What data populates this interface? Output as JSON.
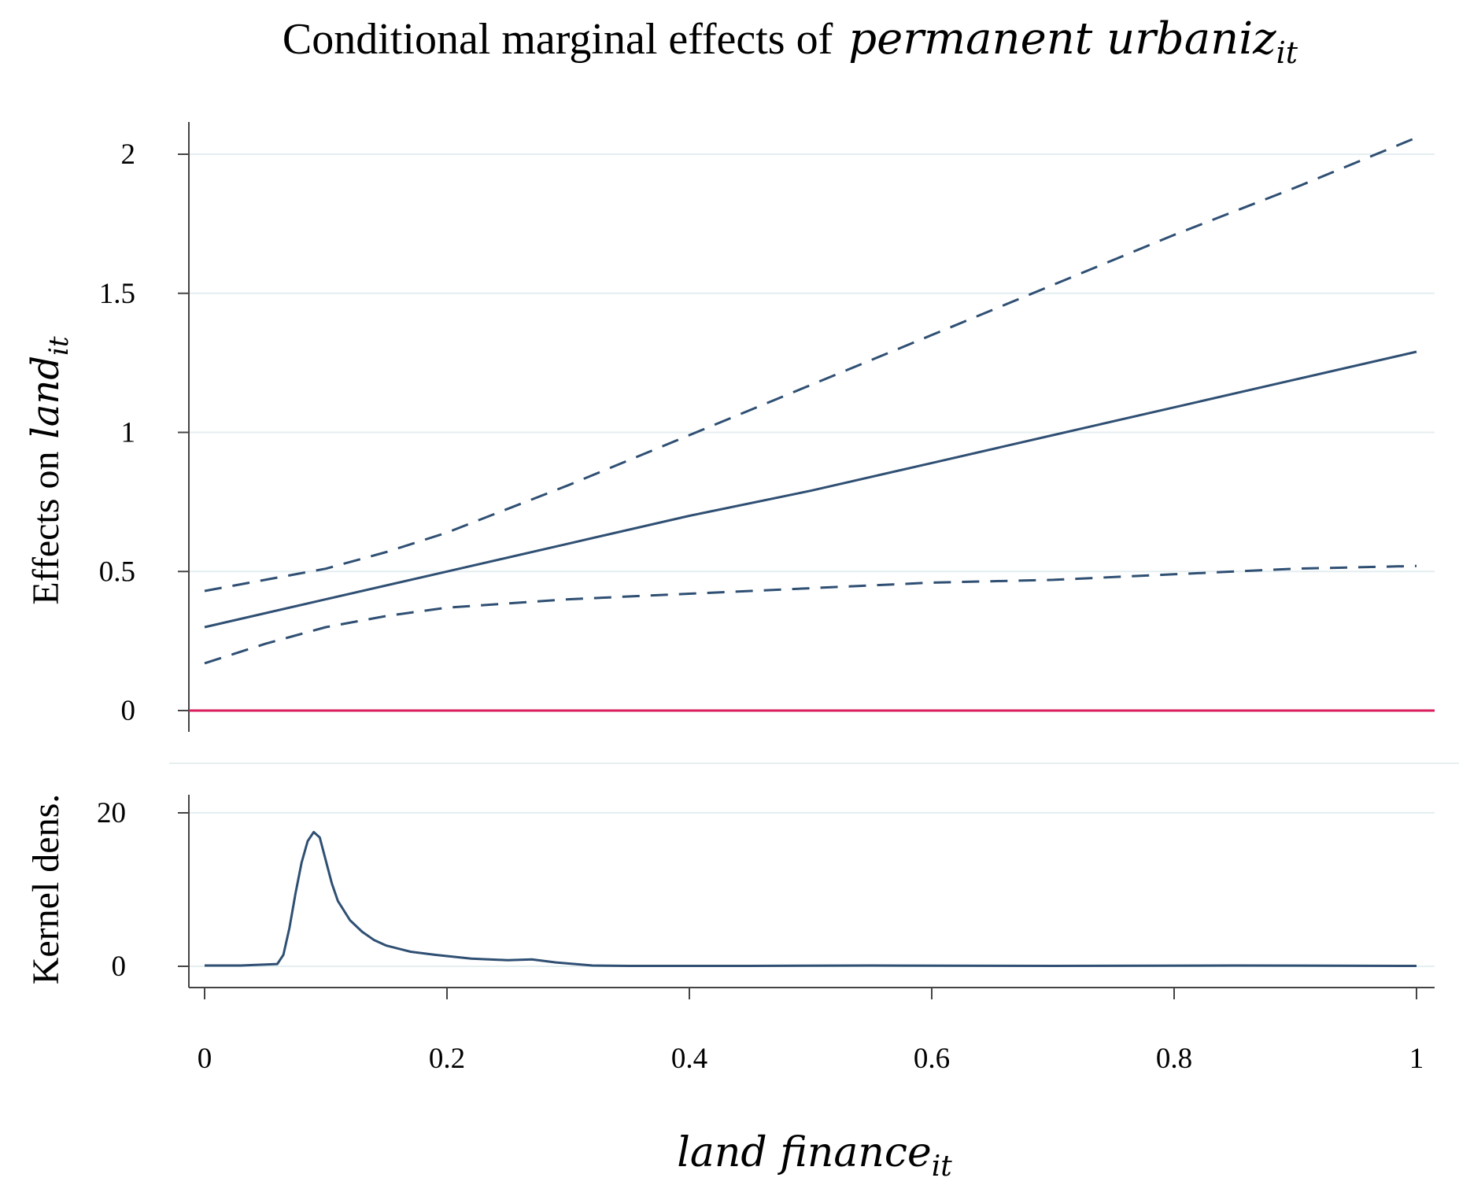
{
  "chart_data": [
    {
      "type": "line",
      "title": {
        "text": "Conditional marginal effects of",
        "math": "permanent urbaniz",
        "subscript": "it"
      },
      "ylabel": {
        "text": "Effects on",
        "math": "land",
        "subscript": "it"
      },
      "xlim": [
        0,
        1
      ],
      "ylim": [
        0,
        2
      ],
      "y_ticks": [
        "0",
        "0.5",
        "1",
        "1.5",
        "2"
      ],
      "grid": true,
      "series": [
        {
          "style": "solid",
          "color": "#2f4f73",
          "x": [
            0,
            0.1,
            0.2,
            0.3,
            0.4,
            0.5,
            0.6,
            0.7,
            0.8,
            0.9,
            1.0
          ],
          "y": [
            0.3,
            0.4,
            0.5,
            0.6,
            0.7,
            0.79,
            0.89,
            0.99,
            1.09,
            1.19,
            1.29
          ]
        },
        {
          "style": "dashed",
          "color": "#2f4f73",
          "x": [
            0,
            0.1,
            0.15,
            0.2,
            0.3,
            0.4,
            0.5,
            0.6,
            0.7,
            0.8,
            0.9,
            1.0
          ],
          "y": [
            0.43,
            0.51,
            0.57,
            0.64,
            0.81,
            0.99,
            1.17,
            1.35,
            1.53,
            1.71,
            1.88,
            2.06
          ]
        },
        {
          "style": "dashed",
          "color": "#2f4f73",
          "x": [
            0,
            0.05,
            0.1,
            0.15,
            0.2,
            0.3,
            0.4,
            0.5,
            0.6,
            0.7,
            0.8,
            0.9,
            1.0
          ],
          "y": [
            0.17,
            0.24,
            0.3,
            0.34,
            0.37,
            0.4,
            0.42,
            0.44,
            0.46,
            0.47,
            0.49,
            0.51,
            0.52
          ]
        }
      ],
      "reference_line": {
        "y": 0,
        "color": "#d81e5b"
      }
    },
    {
      "type": "line",
      "ylabel": {
        "text": "Kernel dens."
      },
      "xlabel": {
        "math": "land finance",
        "subscript": "it"
      },
      "xlim": [
        0,
        1
      ],
      "ylim": [
        0,
        20
      ],
      "x_ticks": [
        "0",
        "0.2",
        "0.4",
        "0.6",
        "0.8",
        "1"
      ],
      "y_ticks": [
        "0",
        "20"
      ],
      "grid": true,
      "series": [
        {
          "style": "solid",
          "color": "#2f4f73",
          "x": [
            0,
            0.03,
            0.06,
            0.065,
            0.07,
            0.075,
            0.08,
            0.085,
            0.09,
            0.095,
            0.1,
            0.105,
            0.11,
            0.12,
            0.13,
            0.14,
            0.15,
            0.17,
            0.19,
            0.22,
            0.25,
            0.27,
            0.29,
            0.32,
            0.35,
            0.45,
            0.55,
            0.7,
            0.85,
            1.0
          ],
          "y": [
            0.1,
            0.1,
            0.3,
            1.5,
            5.0,
            9.5,
            13.5,
            16.3,
            17.5,
            16.8,
            13.8,
            10.8,
            8.5,
            6.0,
            4.5,
            3.4,
            2.7,
            1.9,
            1.5,
            1.0,
            0.8,
            0.9,
            0.5,
            0.1,
            0.05,
            0.05,
            0.1,
            0.05,
            0.1,
            0.05
          ]
        }
      ]
    }
  ]
}
